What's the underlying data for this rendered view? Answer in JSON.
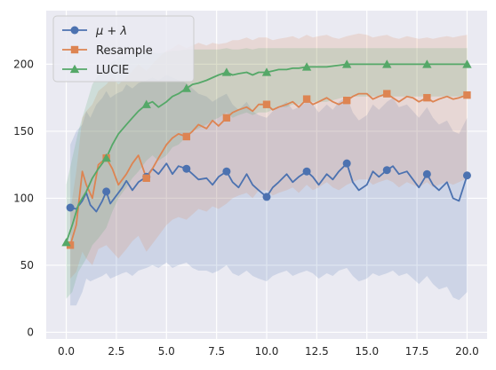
{
  "chart_data": {
    "type": "line",
    "title": "",
    "xlabel": "",
    "ylabel": "",
    "xlim": [
      -1.0,
      21.0
    ],
    "ylim": [
      -5,
      240
    ],
    "grid": true,
    "legend_position": "top-left",
    "x_ticks": [
      0.0,
      2.5,
      5.0,
      7.5,
      10.0,
      12.5,
      15.0,
      17.5,
      20.0
    ],
    "x_tick_labels": [
      "0.0",
      "2.5",
      "5.0",
      "7.5",
      "10.0",
      "12.5",
      "15.0",
      "17.5",
      "20.0"
    ],
    "y_ticks": [
      0,
      50,
      100,
      150,
      200
    ],
    "y_tick_labels": [
      "0",
      "50",
      "100",
      "150",
      "200"
    ],
    "series": [
      {
        "name": "μ + λ",
        "color": "#4c72b0",
        "marker": "circle",
        "x": [
          0.2,
          0.5,
          0.8,
          1.0,
          1.2,
          1.5,
          1.8,
          2.0,
          2.2,
          2.5,
          2.8,
          3.0,
          3.3,
          3.6,
          4.0,
          4.3,
          4.6,
          5.0,
          5.3,
          5.6,
          6.0,
          6.3,
          6.6,
          7.0,
          7.3,
          7.6,
          8.0,
          8.3,
          8.6,
          9.0,
          9.3,
          9.6,
          10.0,
          10.3,
          10.6,
          11.0,
          11.3,
          11.6,
          12.0,
          12.3,
          12.6,
          13.0,
          13.3,
          13.6,
          14.0,
          14.3,
          14.6,
          15.0,
          15.3,
          15.6,
          16.0,
          16.3,
          16.6,
          17.0,
          17.3,
          17.6,
          18.0,
          18.3,
          18.6,
          19.0,
          19.3,
          19.6,
          20.0
        ],
        "y": [
          93,
          92,
          98,
          104,
          95,
          90,
          98,
          105,
          96,
          102,
          108,
          113,
          106,
          112,
          116,
          122,
          118,
          126,
          118,
          124,
          122,
          118,
          114,
          115,
          110,
          116,
          120,
          112,
          108,
          118,
          110,
          106,
          101,
          108,
          112,
          118,
          112,
          116,
          120,
          116,
          110,
          118,
          114,
          120,
          126,
          112,
          106,
          110,
          120,
          116,
          121,
          124,
          118,
          120,
          114,
          108,
          118,
          110,
          106,
          112,
          100,
          98,
          117
        ],
        "upper": [
          140,
          150,
          155,
          165,
          160,
          170,
          175,
          180,
          175,
          178,
          180,
          185,
          182,
          186,
          188,
          190,
          188,
          192,
          190,
          188,
          186,
          182,
          178,
          176,
          172,
          175,
          178,
          170,
          166,
          172,
          165,
          162,
          160,
          165,
          168,
          172,
          166,
          168,
          172,
          170,
          164,
          170,
          166,
          172,
          176,
          164,
          158,
          162,
          170,
          166,
          172,
          175,
          168,
          170,
          165,
          160,
          168,
          160,
          155,
          158,
          150,
          148,
          160
        ],
        "lower": [
          20,
          20,
          30,
          40,
          38,
          40,
          42,
          44,
          40,
          42,
          44,
          45,
          42,
          46,
          48,
          50,
          48,
          52,
          48,
          50,
          52,
          48,
          46,
          46,
          44,
          46,
          50,
          44,
          42,
          46,
          42,
          40,
          38,
          42,
          44,
          46,
          42,
          44,
          46,
          44,
          40,
          44,
          42,
          46,
          48,
          42,
          38,
          40,
          44,
          42,
          44,
          46,
          42,
          44,
          40,
          36,
          42,
          36,
          32,
          34,
          26,
          24,
          30
        ]
      },
      {
        "name": "Resample",
        "color": "#dd8452",
        "marker": "square",
        "x": [
          0.2,
          0.5,
          0.8,
          1.0,
          1.3,
          1.6,
          2.0,
          2.3,
          2.6,
          3.0,
          3.3,
          3.6,
          4.0,
          4.3,
          4.6,
          5.0,
          5.3,
          5.6,
          6.0,
          6.3,
          6.6,
          7.0,
          7.3,
          7.6,
          8.0,
          8.3,
          8.6,
          9.0,
          9.3,
          9.6,
          10.0,
          10.3,
          10.6,
          11.0,
          11.3,
          11.6,
          12.0,
          12.3,
          12.6,
          13.0,
          13.3,
          13.6,
          14.0,
          14.3,
          14.6,
          15.0,
          15.3,
          15.6,
          16.0,
          16.3,
          16.6,
          17.0,
          17.3,
          17.6,
          18.0,
          18.3,
          18.6,
          19.0,
          19.3,
          19.6,
          20.0
        ],
        "y": [
          65,
          80,
          120,
          110,
          100,
          125,
          130,
          122,
          110,
          118,
          126,
          132,
          115,
          122,
          130,
          140,
          145,
          148,
          146,
          150,
          155,
          152,
          158,
          154,
          160,
          164,
          166,
          168,
          165,
          170,
          170,
          166,
          168,
          170,
          172,
          168,
          174,
          170,
          172,
          175,
          172,
          170,
          173,
          176,
          178,
          178,
          174,
          176,
          178,
          175,
          172,
          176,
          175,
          172,
          175,
          172,
          174,
          176,
          174,
          175,
          177
        ],
        "upper": [
          90,
          120,
          160,
          165,
          170,
          180,
          185,
          190,
          185,
          190,
          195,
          200,
          195,
          200,
          205,
          210,
          212,
          215,
          212,
          214,
          216,
          214,
          216,
          215,
          216,
          218,
          218,
          220,
          218,
          220,
          220,
          218,
          219,
          220,
          221,
          219,
          222,
          220,
          221,
          222,
          220,
          219,
          221,
          222,
          223,
          222,
          220,
          221,
          222,
          220,
          219,
          221,
          220,
          219,
          220,
          219,
          220,
          221,
          220,
          221,
          222
        ],
        "lower": [
          40,
          45,
          60,
          55,
          50,
          62,
          65,
          60,
          55,
          62,
          68,
          72,
          60,
          66,
          72,
          80,
          84,
          86,
          84,
          88,
          92,
          90,
          94,
          92,
          96,
          100,
          102,
          104,
          100,
          106,
          106,
          102,
          104,
          106,
          108,
          104,
          110,
          106,
          108,
          112,
          108,
          106,
          110,
          112,
          114,
          114,
          110,
          112,
          114,
          112,
          108,
          112,
          110,
          108,
          112,
          108,
          110,
          112,
          110,
          112,
          115
        ]
      },
      {
        "name": "LUCIE",
        "color": "#55a868",
        "marker": "triangle",
        "x": [
          0.0,
          0.3,
          0.6,
          1.0,
          1.3,
          1.6,
          2.0,
          2.3,
          2.6,
          3.0,
          3.3,
          3.6,
          4.0,
          4.3,
          4.6,
          5.0,
          5.3,
          5.6,
          6.0,
          6.3,
          6.6,
          7.0,
          7.3,
          7.6,
          8.0,
          8.3,
          8.6,
          9.0,
          9.3,
          9.6,
          10.0,
          10.3,
          10.6,
          11.0,
          11.3,
          11.6,
          12.0,
          12.5,
          13.0,
          13.5,
          14.0,
          15.0,
          16.0,
          17.0,
          18.0,
          19.0,
          20.0
        ],
        "y": [
          67,
          80,
          95,
          105,
          115,
          122,
          130,
          140,
          148,
          155,
          160,
          165,
          170,
          172,
          168,
          172,
          176,
          178,
          182,
          185,
          186,
          188,
          190,
          192,
          194,
          192,
          193,
          194,
          192,
          194,
          194,
          195,
          196,
          196,
          197,
          197,
          198,
          198,
          198,
          199,
          200,
          200,
          200,
          200,
          200,
          200,
          200
        ],
        "upper": [
          110,
          130,
          150,
          170,
          185,
          192,
          198,
          202,
          205,
          206,
          207,
          208,
          209,
          209,
          208,
          209,
          210,
          210,
          211,
          211,
          211,
          211,
          211,
          211,
          212,
          211,
          211,
          212,
          211,
          212,
          212,
          212,
          212,
          212,
          212,
          212,
          212,
          212,
          212,
          212,
          212,
          212,
          212,
          212,
          212,
          212,
          212
        ],
        "lower": [
          25,
          30,
          45,
          55,
          65,
          70,
          78,
          90,
          100,
          108,
          115,
          120,
          128,
          132,
          128,
          132,
          138,
          140,
          146,
          150,
          152,
          155,
          158,
          160,
          164,
          160,
          162,
          164,
          162,
          164,
          164,
          166,
          168,
          168,
          170,
          170,
          172,
          172,
          172,
          174,
          176,
          176,
          176,
          176,
          176,
          176,
          176
        ]
      }
    ]
  }
}
